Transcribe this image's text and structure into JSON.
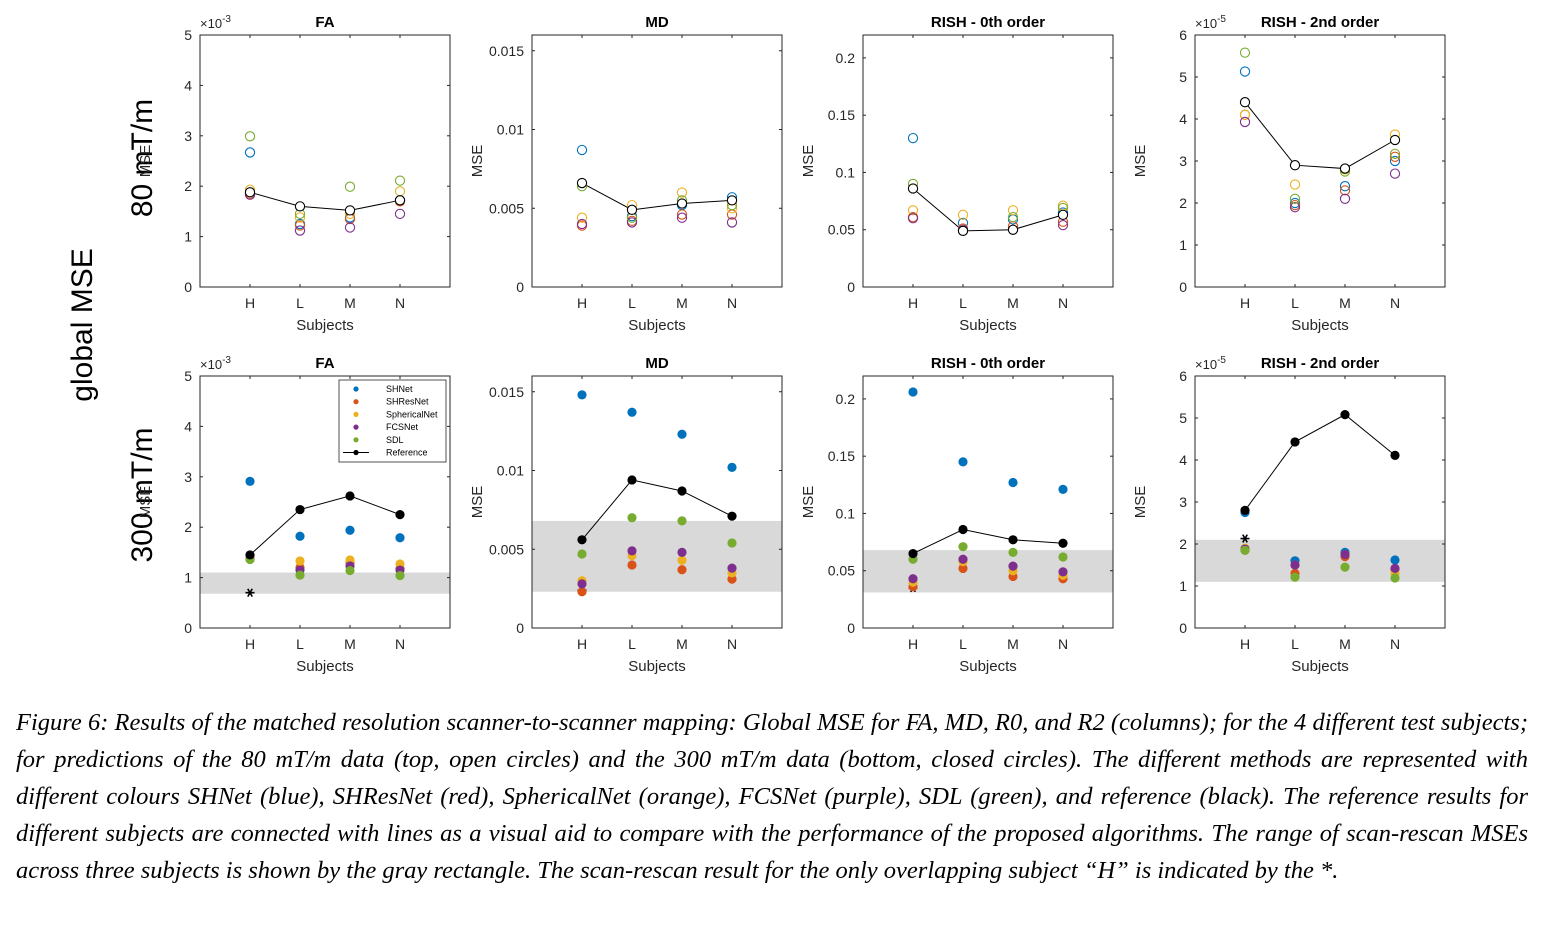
{
  "figure": {
    "row_labels": [
      "80 mT/m",
      "300 mT/m"
    ],
    "side_label": "global MSE",
    "colors": {
      "SHNet": "#0072BD",
      "SHResNet": "#D95319",
      "SphericalNet": "#EDB120",
      "FCSNet": "#7E2F8E",
      "SDL": "#77AC30",
      "Reference": "#000000",
      "range_fill": "#d9d9d9"
    },
    "legend": [
      "SHNet",
      "SHResNet",
      "SphericalNet",
      "FCSNet",
      "SDL",
      "Reference"
    ]
  },
  "chart_data": [
    {
      "type": "scatter",
      "panel": "top-FA",
      "title": "FA",
      "xlabel": "Subjects",
      "ylabel": "MSE",
      "exponent_label": "×10",
      "exponent": "-3",
      "marker": "open",
      "categories": [
        "H",
        "L",
        "M",
        "N"
      ],
      "ylim": [
        0,
        5
      ],
      "yticks": [
        0,
        1,
        2,
        3,
        4,
        5
      ],
      "series": [
        {
          "name": "SHNet",
          "values": [
            2.67,
            1.25,
            1.38,
            1.72
          ]
        },
        {
          "name": "SHResNet",
          "values": [
            1.85,
            1.22,
            1.35,
            1.7
          ]
        },
        {
          "name": "SphericalNet",
          "values": [
            1.93,
            1.38,
            1.45,
            1.9
          ]
        },
        {
          "name": "FCSNet",
          "values": [
            1.83,
            1.12,
            1.18,
            1.45
          ]
        },
        {
          "name": "SDL",
          "values": [
            2.99,
            1.45,
            1.99,
            2.11
          ]
        },
        {
          "name": "Reference",
          "values": [
            1.88,
            1.6,
            1.52,
            1.72
          ]
        }
      ]
    },
    {
      "type": "scatter",
      "panel": "top-MD",
      "title": "MD",
      "xlabel": "Subjects",
      "ylabel": "MSE",
      "exponent_label": "",
      "exponent": "",
      "marker": "open",
      "categories": [
        "H",
        "L",
        "M",
        "N"
      ],
      "ylim": [
        0,
        0.016
      ],
      "yticks": [
        0,
        0.005,
        0.01,
        0.015
      ],
      "ytick_labels": [
        "0",
        "0.005",
        "0.01",
        "0.015"
      ],
      "series": [
        {
          "name": "SHNet",
          "values": [
            0.0087,
            0.0045,
            0.0052,
            0.0057
          ]
        },
        {
          "name": "SHResNet",
          "values": [
            0.0039,
            0.0042,
            0.0046,
            0.0046
          ]
        },
        {
          "name": "SphericalNet",
          "values": [
            0.0044,
            0.0052,
            0.006,
            0.005
          ]
        },
        {
          "name": "FCSNet",
          "values": [
            0.004,
            0.0041,
            0.0044,
            0.0041
          ]
        },
        {
          "name": "SDL",
          "values": [
            0.0064,
            0.0044,
            0.0055,
            0.0052
          ]
        },
        {
          "name": "Reference",
          "values": [
            0.0066,
            0.0049,
            0.0053,
            0.0055
          ]
        }
      ]
    },
    {
      "type": "scatter",
      "panel": "top-R0",
      "title": "RISH - 0th order",
      "xlabel": "Subjects",
      "ylabel": "MSE",
      "exponent_label": "",
      "exponent": "",
      "marker": "open",
      "categories": [
        "H",
        "L",
        "M",
        "N"
      ],
      "ylim": [
        0,
        0.22
      ],
      "yticks": [
        0,
        0.05,
        0.1,
        0.15,
        0.2
      ],
      "ytick_labels": [
        "0",
        "0.05",
        "0.1",
        "0.15",
        "0.2"
      ],
      "series": [
        {
          "name": "SHNet",
          "values": [
            0.13,
            0.056,
            0.059,
            0.065
          ]
        },
        {
          "name": "SHResNet",
          "values": [
            0.061,
            0.051,
            0.053,
            0.057
          ]
        },
        {
          "name": "SphericalNet",
          "values": [
            0.067,
            0.063,
            0.067,
            0.071
          ]
        },
        {
          "name": "FCSNet",
          "values": [
            0.06,
            0.05,
            0.05,
            0.054
          ]
        },
        {
          "name": "SDL",
          "values": [
            0.09,
            0.049,
            0.061,
            0.069
          ]
        },
        {
          "name": "Reference",
          "values": [
            0.086,
            0.049,
            0.05,
            0.063
          ]
        }
      ]
    },
    {
      "type": "scatter",
      "panel": "top-R2",
      "title": "RISH - 2nd order",
      "xlabel": "Subjects",
      "ylabel": "MSE",
      "exponent_label": "×10",
      "exponent": "-5",
      "marker": "open",
      "categories": [
        "H",
        "L",
        "M",
        "N"
      ],
      "ylim": [
        0,
        6
      ],
      "yticks": [
        0,
        1,
        2,
        3,
        4,
        5,
        6
      ],
      "series": [
        {
          "name": "SHNet",
          "values": [
            5.13,
            2.0,
            2.4,
            3.0
          ]
        },
        {
          "name": "SHResNet",
          "values": [
            4.1,
            1.95,
            2.3,
            3.1
          ]
        },
        {
          "name": "SphericalNet",
          "values": [
            4.1,
            2.44,
            2.8,
            3.63
          ]
        },
        {
          "name": "FCSNet",
          "values": [
            3.93,
            1.9,
            2.1,
            2.7
          ]
        },
        {
          "name": "SDL",
          "values": [
            5.58,
            2.1,
            2.75,
            3.17
          ]
        },
        {
          "name": "Reference",
          "values": [
            4.4,
            2.9,
            2.82,
            3.5
          ]
        }
      ]
    },
    {
      "type": "scatter",
      "panel": "bottom-FA",
      "title": "FA",
      "xlabel": "Subjects",
      "ylabel": "MSE",
      "exponent_label": "×10",
      "exponent": "-3",
      "marker": "filled",
      "categories": [
        "H",
        "L",
        "M",
        "N"
      ],
      "ylim": [
        0,
        5
      ],
      "yticks": [
        0,
        1,
        2,
        3,
        4,
        5
      ],
      "scan_rescan_range": [
        0.68,
        1.1
      ],
      "scan_rescan_H": 0.7,
      "legend_position": "top-right",
      "series": [
        {
          "name": "SHNet",
          "values": [
            2.91,
            1.82,
            1.94,
            1.79
          ]
        },
        {
          "name": "SHResNet",
          "values": [
            1.38,
            1.2,
            1.3,
            1.18
          ]
        },
        {
          "name": "SphericalNet",
          "values": [
            1.43,
            1.33,
            1.35,
            1.27
          ]
        },
        {
          "name": "FCSNet",
          "values": [
            1.38,
            1.15,
            1.23,
            1.15
          ]
        },
        {
          "name": "SDL",
          "values": [
            1.36,
            1.05,
            1.14,
            1.04
          ]
        },
        {
          "name": "Reference",
          "values": [
            1.45,
            2.35,
            2.62,
            2.25
          ]
        }
      ]
    },
    {
      "type": "scatter",
      "panel": "bottom-MD",
      "title": "MD",
      "xlabel": "Subjects",
      "ylabel": "MSE",
      "exponent_label": "",
      "exponent": "",
      "marker": "filled",
      "categories": [
        "H",
        "L",
        "M",
        "N"
      ],
      "ylim": [
        0,
        0.016
      ],
      "yticks": [
        0,
        0.005,
        0.01,
        0.015
      ],
      "ytick_labels": [
        "0",
        "0.005",
        "0.01",
        "0.015"
      ],
      "scan_rescan_range": [
        0.0023,
        0.0068
      ],
      "scan_rescan_H": 0.0024,
      "series": [
        {
          "name": "SHNet",
          "values": [
            0.0148,
            0.0137,
            0.0123,
            0.0102
          ]
        },
        {
          "name": "SHResNet",
          "values": [
            0.0023,
            0.004,
            0.0037,
            0.0031
          ]
        },
        {
          "name": "SphericalNet",
          "values": [
            0.003,
            0.0046,
            0.0043,
            0.0035
          ]
        },
        {
          "name": "FCSNet",
          "values": [
            0.0028,
            0.0049,
            0.0048,
            0.0038
          ]
        },
        {
          "name": "SDL",
          "values": [
            0.0047,
            0.007,
            0.0068,
            0.0054
          ]
        },
        {
          "name": "Reference",
          "values": [
            0.0056,
            0.0094,
            0.0087,
            0.0071
          ]
        }
      ]
    },
    {
      "type": "scatter",
      "panel": "bottom-R0",
      "title": "RISH - 0th order",
      "xlabel": "Subjects",
      "ylabel": "MSE",
      "exponent_label": "",
      "exponent": "",
      "marker": "filled",
      "categories": [
        "H",
        "L",
        "M",
        "N"
      ],
      "ylim": [
        0,
        0.22
      ],
      "yticks": [
        0,
        0.05,
        0.1,
        0.15,
        0.2
      ],
      "ytick_labels": [
        "0",
        "0.05",
        "0.1",
        "0.15",
        "0.2"
      ],
      "scan_rescan_range": [
        0.031,
        0.068
      ],
      "scan_rescan_H": 0.035,
      "series": [
        {
          "name": "SHNet",
          "values": [
            0.206,
            0.145,
            0.127,
            0.121
          ]
        },
        {
          "name": "SHResNet",
          "values": [
            0.036,
            0.052,
            0.045,
            0.043
          ]
        },
        {
          "name": "SphericalNet",
          "values": [
            0.04,
            0.058,
            0.05,
            0.046
          ]
        },
        {
          "name": "FCSNet",
          "values": [
            0.043,
            0.06,
            0.054,
            0.049
          ]
        },
        {
          "name": "SDL",
          "values": [
            0.06,
            0.071,
            0.066,
            0.062
          ]
        },
        {
          "name": "Reference",
          "values": [
            0.065,
            0.086,
            0.077,
            0.074
          ]
        }
      ]
    },
    {
      "type": "scatter",
      "panel": "bottom-R2",
      "title": "RISH - 2nd order",
      "xlabel": "Subjects",
      "ylabel": "MSE",
      "exponent_label": "×10",
      "exponent": "-5",
      "marker": "filled",
      "categories": [
        "H",
        "L",
        "M",
        "N"
      ],
      "ylim": [
        0,
        6
      ],
      "yticks": [
        0,
        1,
        2,
        3,
        4,
        5,
        6
      ],
      "scan_rescan_range": [
        1.1,
        2.1
      ],
      "scan_rescan_H": 2.13,
      "series": [
        {
          "name": "SHNet",
          "values": [
            2.75,
            1.6,
            1.8,
            1.62
          ]
        },
        {
          "name": "SHResNet",
          "values": [
            1.85,
            1.3,
            1.7,
            1.4
          ]
        },
        {
          "name": "SphericalNet",
          "values": [
            1.9,
            1.5,
            1.75,
            1.3
          ]
        },
        {
          "name": "FCSNet",
          "values": [
            1.88,
            1.5,
            1.75,
            1.42
          ]
        },
        {
          "name": "SDL",
          "values": [
            1.85,
            1.21,
            1.45,
            1.19
          ]
        },
        {
          "name": "Reference",
          "values": [
            2.8,
            4.43,
            5.08,
            4.11
          ]
        }
      ]
    }
  ],
  "caption": "Figure 6: Results of the matched resolution scanner-to-scanner mapping: Global MSE for FA, MD, R0, and R2 (columns); for the 4 different test subjects; for predictions of the 80 mT/m data (top, open circles) and the 300 mT/m data (bottom, closed circles). The different methods are represented with different colours SHNet (blue), SHResNet (red), SphericalNet (orange), FCSNet (purple), SDL (green), and reference (black). The reference results for different subjects are connected with lines as a visual aid to compare with the performance of the proposed algorithms. The range of scan-rescan MSEs across three subjects is shown by the gray rectangle. The scan-rescan result for the only overlapping subject “H” is indicated by the *."
}
